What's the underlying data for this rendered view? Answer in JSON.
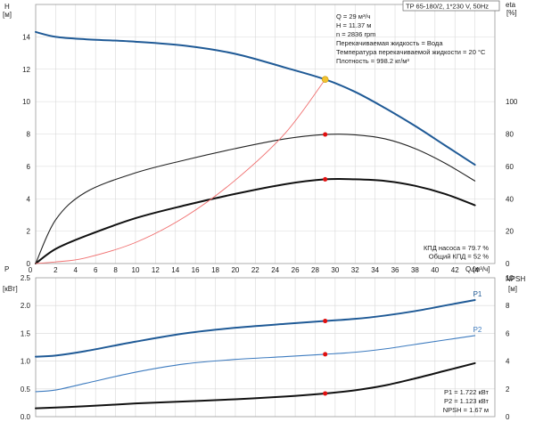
{
  "header": {
    "title": "TP 65-180/2, 1*230 V, 50Hz"
  },
  "colors": {
    "head_curve": "#1f5a96",
    "p1_curve": "#1f5a96",
    "p2_curve": "#3d7bbf",
    "eta_curve": "#222222",
    "eta_total_curve": "#111111",
    "npsh_curve": "#111111",
    "system_curve": "#f07070",
    "duty_point": "#f2c230",
    "marker": "#e01010",
    "grid": "#d8d8d8"
  },
  "upper_info": [
    "Q = 29 м³/ч",
    "H = 11.37 м",
    "n = 2836 rpm",
    "Перекачиваемая жидкость = Вода",
    "Температура перекачиваемой жидкости = 20 °C",
    "Плотность = 998.2 кг/м³"
  ],
  "upper_info_bottom": [
    "КПД насоса = 79.7 %",
    "Общий КПД = 52 %"
  ],
  "lower_info": [
    "P1 = 1.722 кВт",
    "P2 = 1.123 кВт",
    "NPSH = 1.67 м"
  ],
  "chart_data": [
    {
      "type": "line",
      "name": "head-efficiency",
      "xlabel": "Q [м³/ч]",
      "ylabel_left": "H [м]",
      "ylabel_right": "eta [%]",
      "xlim": [
        0,
        46
      ],
      "ylim_left": [
        0,
        16
      ],
      "ylim_right": [
        0,
        160
      ],
      "x_ticks": [
        2,
        4,
        6,
        8,
        10,
        12,
        14,
        16,
        18,
        20,
        22,
        24,
        26,
        28,
        30,
        32,
        34,
        36,
        38,
        40,
        42,
        44
      ],
      "y_ticks_left": [
        0,
        2,
        4,
        6,
        8,
        10,
        12,
        14
      ],
      "y_ticks_right": [
        0,
        20,
        40,
        60,
        80,
        100
      ],
      "grid": true,
      "series": [
        {
          "name": "H",
          "axis": "left",
          "color_key": "head_curve",
          "width": 2,
          "x": [
            0,
            2,
            5,
            10,
            15,
            20,
            25,
            29,
            32,
            35,
            38,
            41,
            44
          ],
          "y": [
            14.3,
            14.0,
            13.85,
            13.7,
            13.45,
            12.95,
            12.1,
            11.37,
            10.6,
            9.6,
            8.5,
            7.3,
            6.1
          ]
        },
        {
          "name": "eta",
          "axis": "right",
          "color_key": "eta_curve",
          "width": 1.1,
          "x": [
            0,
            2,
            5,
            10,
            15,
            20,
            25,
            29,
            32,
            35,
            38,
            41,
            44
          ],
          "y": [
            0,
            27,
            44,
            56,
            64,
            71,
            77,
            79.7,
            79.5,
            77,
            71,
            62,
            51
          ]
        },
        {
          "name": "eta_total",
          "axis": "right",
          "color_key": "eta_total_curve",
          "width": 2,
          "x": [
            0,
            2,
            5,
            10,
            15,
            20,
            25,
            29,
            32,
            35,
            38,
            41,
            44
          ],
          "y": [
            0,
            9,
            17,
            28,
            36,
            43,
            49,
            52,
            52,
            51,
            48,
            43,
            36
          ]
        },
        {
          "name": "system",
          "axis": "left",
          "color_key": "system_curve",
          "width": 0.9,
          "x": [
            0,
            2,
            5,
            10,
            15,
            20,
            25,
            29
          ],
          "y": [
            0,
            0.1,
            0.35,
            1.3,
            2.9,
            5.15,
            8.05,
            11.37
          ]
        }
      ],
      "markers": [
        {
          "axis": "left",
          "x": 29,
          "y": 11.37,
          "color_key": "duty_point",
          "r": 3.5
        },
        {
          "axis": "right",
          "x": 29,
          "y": 79.7,
          "color_key": "marker",
          "r": 2.5
        },
        {
          "axis": "right",
          "x": 29,
          "y": 52,
          "color_key": "marker",
          "r": 2.5
        }
      ]
    },
    {
      "type": "line",
      "name": "power-npsh",
      "ylabel_left": "P [кВт]",
      "ylabel_right": "NPSH [м]",
      "xlim": [
        0,
        46
      ],
      "ylim_left": [
        0,
        2.5
      ],
      "ylim_right": [
        0,
        10
      ],
      "y_ticks_left": [
        0,
        0.5,
        1.0,
        1.5,
        2.0,
        2.5
      ],
      "y_ticks_left_labels": [
        "0.0",
        "0.5",
        "1.0",
        "1.5",
        "2.0",
        "2.5"
      ],
      "y_ticks_right": [
        0,
        2,
        4,
        6,
        8,
        10
      ],
      "grid": true,
      "series": [
        {
          "name": "P1",
          "axis": "left",
          "color_key": "p1_curve",
          "width": 2,
          "x": [
            0,
            2,
            5,
            10,
            15,
            20,
            25,
            29,
            32,
            35,
            38,
            41,
            44
          ],
          "y": [
            1.08,
            1.1,
            1.18,
            1.35,
            1.5,
            1.6,
            1.67,
            1.722,
            1.76,
            1.82,
            1.9,
            2.0,
            2.1
          ]
        },
        {
          "name": "P2",
          "axis": "left",
          "color_key": "p2_curve",
          "width": 1.1,
          "x": [
            0,
            2,
            5,
            10,
            15,
            20,
            25,
            29,
            32,
            35,
            38,
            41,
            44
          ],
          "y": [
            0.45,
            0.48,
            0.6,
            0.8,
            0.95,
            1.03,
            1.08,
            1.123,
            1.16,
            1.22,
            1.3,
            1.38,
            1.46
          ]
        },
        {
          "name": "NPSH",
          "axis": "right",
          "color_key": "npsh_curve",
          "width": 2,
          "x": [
            0,
            5,
            10,
            15,
            20,
            25,
            29,
            32,
            35,
            38,
            41,
            44
          ],
          "y": [
            0.6,
            0.75,
            0.95,
            1.1,
            1.25,
            1.45,
            1.67,
            1.9,
            2.25,
            2.75,
            3.3,
            3.85
          ]
        }
      ],
      "series_labels": [
        {
          "text": "P1",
          "series": "P1"
        },
        {
          "text": "P2",
          "series": "P2"
        }
      ],
      "markers": [
        {
          "axis": "left",
          "x": 29,
          "y": 1.722,
          "color_key": "marker",
          "r": 2.5
        },
        {
          "axis": "left",
          "x": 29,
          "y": 1.123,
          "color_key": "marker",
          "r": 2.5
        },
        {
          "axis": "right",
          "x": 29,
          "y": 1.67,
          "color_key": "marker",
          "r": 2.5
        }
      ]
    }
  ]
}
